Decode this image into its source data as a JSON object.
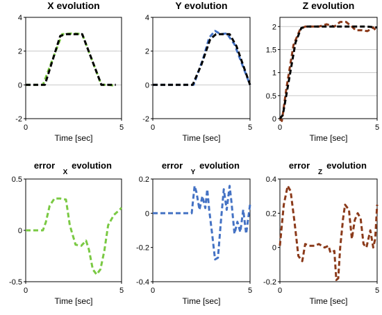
{
  "chart_data": [
    {
      "type": "line",
      "title": "X evolution",
      "xlabel": "Time [sec]",
      "xlim": [
        0,
        5
      ],
      "ylim": [
        -2,
        4
      ],
      "xticks": [
        "0",
        "5"
      ],
      "yticks": [
        "-2",
        "0",
        "2",
        "4"
      ],
      "grid": "horizontal",
      "series": [
        {
          "color": "#7ac943",
          "dashed": true,
          "x": [
            0,
            0.9,
            1.9,
            2.5,
            2.95,
            3.95,
            4.3,
            4.7
          ],
          "y": [
            0,
            0,
            3,
            3.05,
            3,
            0,
            0,
            -0.05
          ]
        },
        {
          "color": "#000000",
          "dashed": true,
          "x": [
            0,
            1,
            1.8,
            2.1,
            2.7,
            2.95,
            3.95,
            4.7
          ],
          "y": [
            0,
            0,
            2.9,
            3,
            3,
            3,
            0,
            0
          ]
        }
      ]
    },
    {
      "type": "line",
      "title": "Y evolution",
      "xlabel": "Time [sec]",
      "xlim": [
        0,
        5
      ],
      "ylim": [
        -2,
        4
      ],
      "xticks": [
        "0",
        "5"
      ],
      "yticks": [
        "-2",
        "0",
        "2",
        "4"
      ],
      "grid": "horizontal",
      "series": [
        {
          "color": "#4472c4",
          "dashed": true,
          "x": [
            0,
            2.1,
            2.6,
            2.9,
            3.2,
            3.5,
            3.8,
            4.2,
            5
          ],
          "y": [
            0,
            0,
            1.6,
            2.8,
            3.2,
            3.0,
            3.05,
            2.4,
            0
          ]
        },
        {
          "color": "#000000",
          "dashed": true,
          "x": [
            0,
            2.05,
            2.5,
            2.95,
            3.25,
            3.5,
            3.95,
            4.3,
            5
          ],
          "y": [
            0,
            0,
            1.2,
            2.7,
            3,
            3,
            3,
            2.3,
            0
          ]
        }
      ]
    },
    {
      "type": "line",
      "title": "Z evolution",
      "xlabel": "Time [sec]",
      "xlim": [
        0,
        5
      ],
      "ylim": [
        0,
        2.2
      ],
      "xticks": [
        "0",
        "5"
      ],
      "yticks": [
        "0",
        "0.5",
        "1",
        "1.5",
        "2"
      ],
      "grid": "horizontal",
      "series": [
        {
          "color": "#8b3a1a",
          "dashed": true,
          "x": [
            0,
            0.1,
            0.35,
            0.7,
            1.05,
            1.3,
            2.0,
            2.4,
            2.8,
            3.1,
            3.4,
            3.7,
            3.9,
            4.2,
            4.5,
            4.8,
            5.0
          ],
          "y": [
            0,
            -0.05,
            0.7,
            1.6,
            1.95,
            2.0,
            2.0,
            2.05,
            2.0,
            2.1,
            2.1,
            2.0,
            1.92,
            1.92,
            1.9,
            1.98,
            1.88
          ]
        },
        {
          "color": "#000000",
          "dashed": true,
          "x": [
            0,
            0.15,
            0.45,
            0.8,
            1.1,
            1.4,
            2.2,
            3.0,
            4.0,
            4.5,
            5.0
          ],
          "y": [
            0,
            0.08,
            0.8,
            1.65,
            1.97,
            2.0,
            2.0,
            2.0,
            2.0,
            2.0,
            1.98
          ]
        }
      ]
    },
    {
      "type": "line",
      "title": "error",
      "title_subscript": "X",
      "title_suffix": "evolution",
      "xlabel": "Time [sec]",
      "xlim": [
        0,
        5
      ],
      "ylim": [
        -0.5,
        0.5
      ],
      "xticks": [
        "0",
        "5"
      ],
      "yticks": [
        "-0.5",
        "0",
        "0.5"
      ],
      "grid": "none",
      "series": [
        {
          "color": "#7ac943",
          "dashed": true,
          "x": [
            0,
            0.9,
            1.05,
            1.25,
            1.5,
            1.8,
            2.1,
            2.3,
            2.6,
            2.9,
            3.15,
            3.3,
            3.5,
            3.7,
            3.9,
            4.1,
            4.3,
            4.6,
            4.9,
            5.0
          ],
          "y": [
            0.0,
            0.0,
            0.08,
            0.24,
            0.31,
            0.31,
            0.3,
            0.05,
            -0.14,
            -0.15,
            -0.1,
            -0.19,
            -0.38,
            -0.43,
            -0.38,
            -0.2,
            0.05,
            0.15,
            0.2,
            0.22
          ]
        }
      ]
    },
    {
      "type": "line",
      "title": "error",
      "title_subscript": "Y",
      "title_suffix": "evolution",
      "xlabel": "Time [sec]",
      "xlim": [
        0,
        5
      ],
      "ylim": [
        -0.4,
        0.2
      ],
      "xticks": [
        "0",
        "5"
      ],
      "yticks": [
        "-0.4",
        "-0.2",
        "0",
        "0.2"
      ],
      "grid": "none",
      "series": [
        {
          "color": "#4472c4",
          "dashed": true,
          "x": [
            0,
            2.0,
            2.15,
            2.25,
            2.4,
            2.55,
            2.7,
            2.8,
            2.9,
            3.05,
            3.2,
            3.35,
            3.5,
            3.65,
            3.8,
            3.95,
            4.05,
            4.2,
            4.35,
            4.5,
            4.65,
            4.8,
            5.0
          ],
          "y": [
            0,
            0,
            0.16,
            0.12,
            0.02,
            0.1,
            0.03,
            0.14,
            0.02,
            -0.12,
            -0.27,
            -0.26,
            -0.05,
            0.14,
            0.02,
            0.16,
            0.06,
            -0.12,
            -0.05,
            -0.11,
            0.02,
            -0.12,
            0.05
          ]
        }
      ]
    },
    {
      "type": "line",
      "title": "error",
      "title_subscript": "Z",
      "title_suffix": "evolution",
      "xlabel": "Time [sec]",
      "xlim": [
        0,
        5
      ],
      "ylim": [
        -0.2,
        0.4
      ],
      "xticks": [
        "0",
        "5"
      ],
      "yticks": [
        "-0.2",
        "0",
        "0.2",
        "0.4"
      ],
      "grid": "none",
      "series": [
        {
          "color": "#8b3a1a",
          "dashed": true,
          "x": [
            0,
            0.2,
            0.4,
            0.55,
            0.75,
            0.95,
            1.15,
            1.3,
            1.5,
            1.8,
            2.0,
            2.3,
            2.5,
            2.6,
            2.8,
            2.9,
            3.0,
            3.1,
            3.25,
            3.35,
            3.55,
            3.7,
            3.85,
            4.0,
            4.15,
            4.3,
            4.45,
            4.65,
            4.8,
            4.9,
            5.0
          ],
          "y": [
            0.01,
            0.25,
            0.36,
            0.33,
            0.15,
            -0.05,
            -0.08,
            0.02,
            0.01,
            0.01,
            0.02,
            0.0,
            0.01,
            -0.03,
            -0.02,
            -0.19,
            -0.18,
            0.0,
            0.17,
            0.25,
            0.22,
            0.05,
            0.16,
            0.2,
            0.17,
            0.02,
            0.0,
            0.1,
            0.0,
            0.05,
            0.25
          ]
        }
      ]
    }
  ]
}
